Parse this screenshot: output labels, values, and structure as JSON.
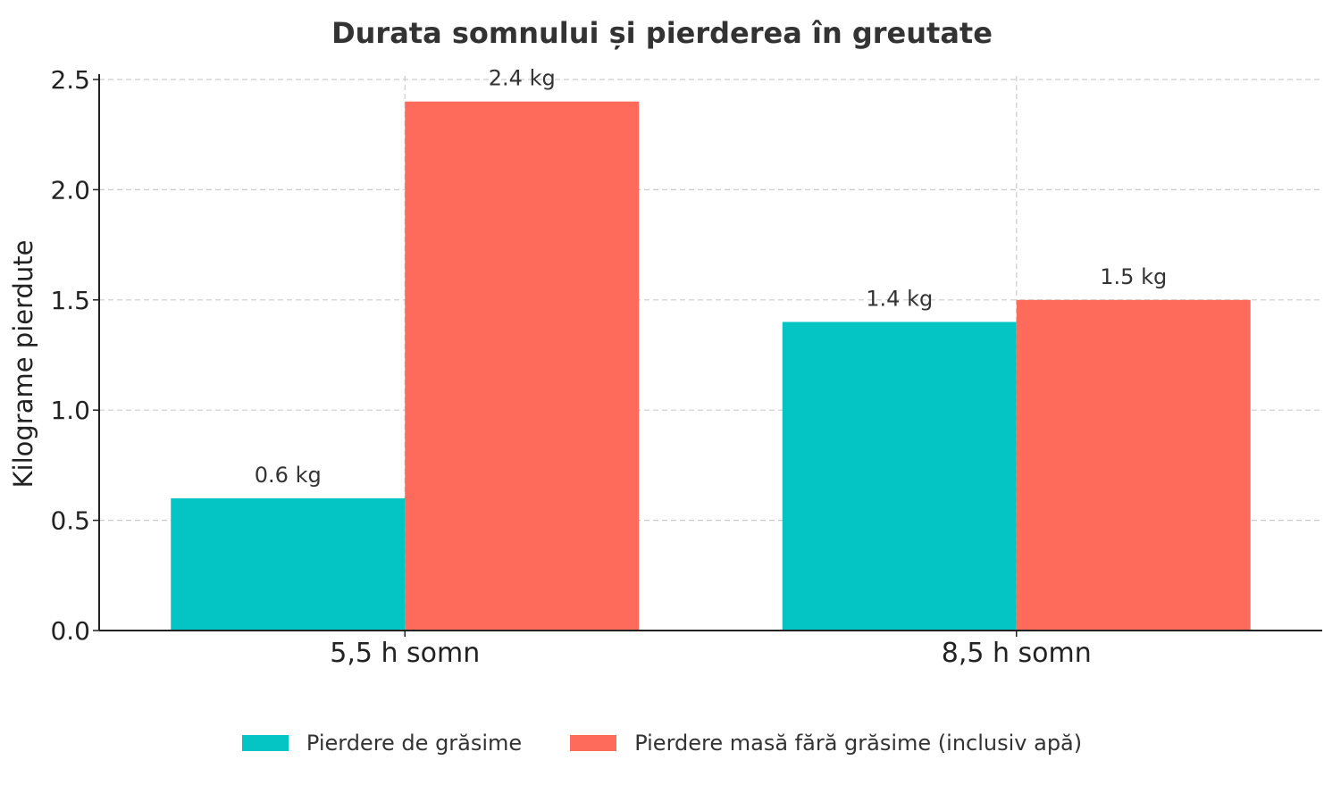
{
  "chart_data": {
    "type": "bar",
    "title": "Durata somnului și pierderea în greutate",
    "xlabel": "",
    "ylabel": "Kilograme pierdute",
    "categories": [
      "5,5 h somn",
      "8,5 h somn"
    ],
    "series": [
      {
        "name": "Pierdere de grăsime",
        "values": [
          0.6,
          1.4
        ],
        "labels": [
          "0.6 kg",
          "1.4 kg"
        ],
        "color": "#04C4C4"
      },
      {
        "name": "Pierdere masă fără grăsime (inclusiv apă)",
        "values": [
          2.4,
          1.5
        ],
        "labels": [
          "2.4 kg",
          "1.5 kg"
        ],
        "color": "#FF6B5B"
      }
    ],
    "ylim": [
      0,
      2.5
    ],
    "yticks": [
      "0.0",
      "0.5",
      "1.0",
      "1.5",
      "2.0",
      "2.5"
    ],
    "grid": true,
    "legend_position": "bottom"
  }
}
